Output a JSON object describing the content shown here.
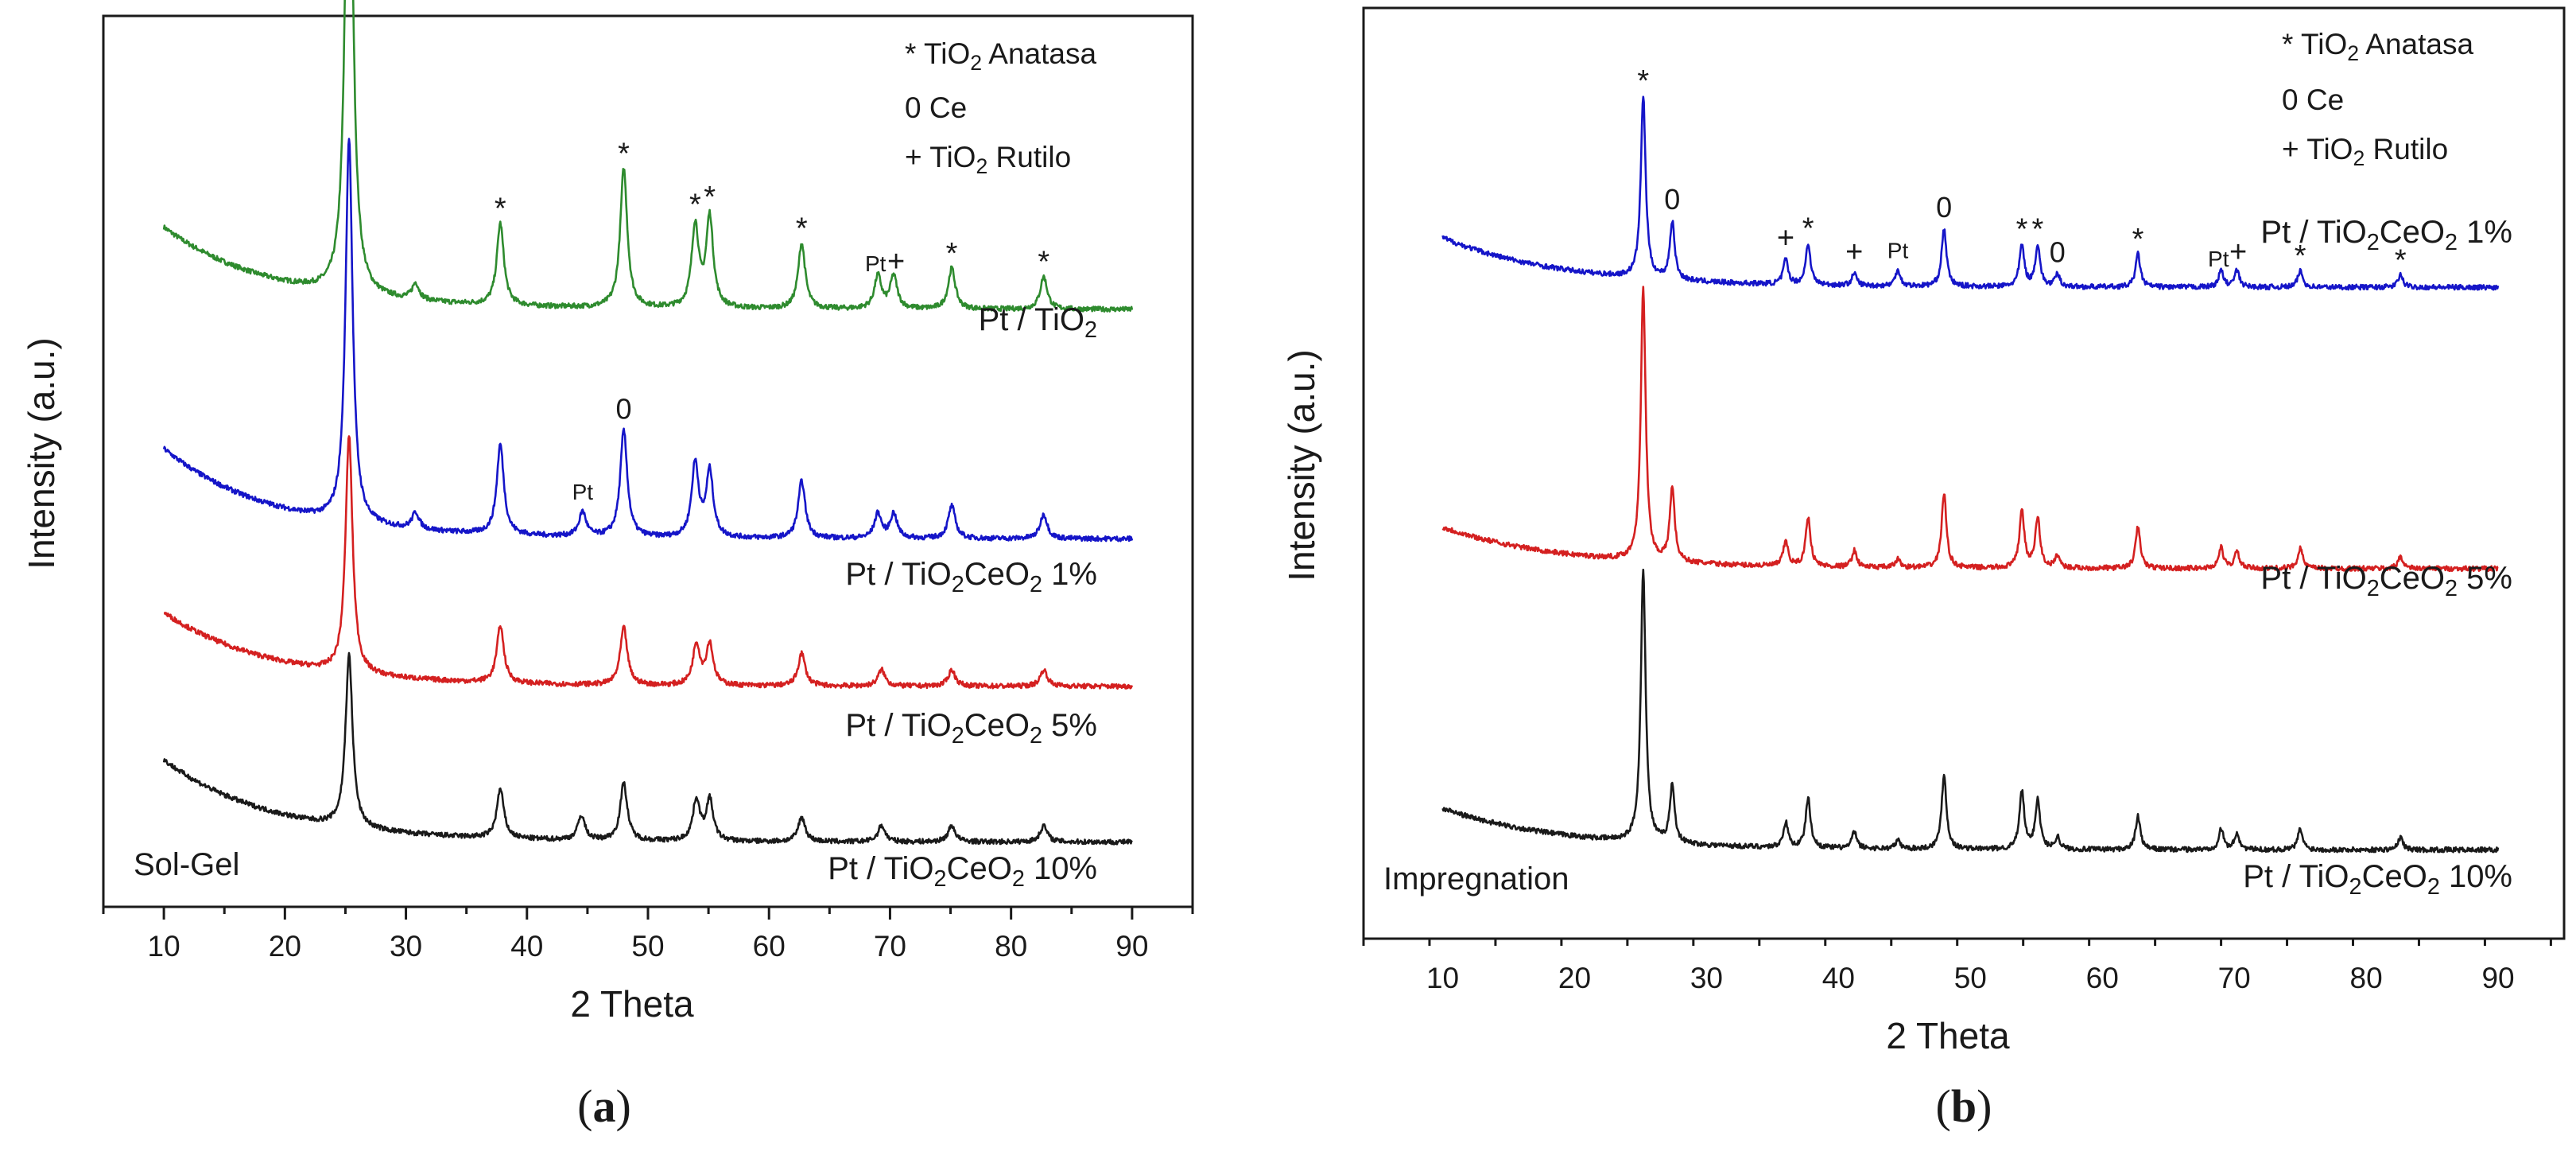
{
  "chart_data": [
    {
      "type": "line",
      "panel_label": "a",
      "xlabel": "2 Theta",
      "ylabel": "Intensity (a.u.)",
      "xlim": [
        5,
        95
      ],
      "xticks": [
        10,
        20,
        30,
        40,
        50,
        60,
        70,
        80,
        90
      ],
      "method_label": "Sol-Gel",
      "legend": [
        "* TiO2 Anatasa",
        "0 Ce",
        "+ TiO2 Rutilo"
      ],
      "series": [
        {
          "name": "Pt / TiO2",
          "color": "#2e8b2e",
          "baseline": 0.7,
          "background": 0.1,
          "peaks": [
            [
              25.3,
              0.72
            ],
            [
              30.8,
              0.02
            ],
            [
              37.8,
              0.1
            ],
            [
              48.0,
              0.17
            ],
            [
              53.9,
              0.1
            ],
            [
              55.1,
              0.11
            ],
            [
              62.7,
              0.08
            ],
            [
              69.0,
              0.04
            ],
            [
              70.3,
              0.04
            ],
            [
              75.1,
              0.05
            ],
            [
              82.7,
              0.04
            ]
          ]
        },
        {
          "name": "Pt / TiO2CeO2 1%",
          "color": "#1515c8",
          "baseline": 0.42,
          "background": 0.11,
          "peaks": [
            [
              25.3,
              0.47
            ],
            [
              30.8,
              0.02
            ],
            [
              37.8,
              0.11
            ],
            [
              44.6,
              0.03
            ],
            [
              48.0,
              0.13
            ],
            [
              53.9,
              0.09
            ],
            [
              55.1,
              0.08
            ],
            [
              62.7,
              0.07
            ],
            [
              69.0,
              0.03
            ],
            [
              70.3,
              0.03
            ],
            [
              75.1,
              0.04
            ],
            [
              82.7,
              0.03
            ]
          ]
        },
        {
          "name": "Pt / TiO2CeO2 5%",
          "color": "#d42020",
          "baseline": 0.24,
          "background": 0.09,
          "peaks": [
            [
              25.3,
              0.29
            ],
            [
              37.8,
              0.07
            ],
            [
              48.0,
              0.07
            ],
            [
              54.0,
              0.05
            ],
            [
              55.1,
              0.05
            ],
            [
              62.7,
              0.04
            ],
            [
              69.3,
              0.02
            ],
            [
              75.1,
              0.02
            ],
            [
              82.7,
              0.02
            ]
          ]
        },
        {
          "name": "Pt / TiO2CeO2 10%",
          "color": "#1a1a1a",
          "baseline": 0.05,
          "background": 0.1,
          "peaks": [
            [
              25.3,
              0.21
            ],
            [
              37.8,
              0.06
            ],
            [
              44.5,
              0.03
            ],
            [
              48.0,
              0.07
            ],
            [
              54.0,
              0.05
            ],
            [
              55.1,
              0.05
            ],
            [
              62.7,
              0.03
            ],
            [
              69.3,
              0.02
            ],
            [
              75.1,
              0.02
            ],
            [
              82.7,
              0.02
            ]
          ]
        }
      ],
      "annotations": [
        {
          "text": "*",
          "x": 25.3,
          "series": 0
        },
        {
          "text": "*",
          "x": 37.8,
          "series": 0
        },
        {
          "text": "*",
          "x": 48.0,
          "series": 0
        },
        {
          "text": "*",
          "x": 53.9,
          "series": 0
        },
        {
          "text": "*",
          "x": 55.1,
          "series": 0
        },
        {
          "text": "*",
          "x": 62.7,
          "series": 0
        },
        {
          "text": "Pt",
          "x": 68.8,
          "series": 0
        },
        {
          "text": "+",
          "x": 70.5,
          "series": 0
        },
        {
          "text": "*",
          "x": 75.1,
          "series": 0
        },
        {
          "text": "*",
          "x": 82.7,
          "series": 0
        },
        {
          "text": "Pt",
          "x": 44.6,
          "series": 1
        },
        {
          "text": "0",
          "x": 48.0,
          "series": 1
        }
      ]
    },
    {
      "type": "line",
      "panel_label": "b",
      "xlabel": "2 Theta",
      "ylabel": "Intensity (a.u.)",
      "xlim": [
        4,
        95
      ],
      "xticks": [
        10,
        20,
        30,
        40,
        50,
        60,
        70,
        80,
        90
      ],
      "method_label": "Impregnation",
      "legend": [
        "* TiO2 Anatasa",
        "0 Ce",
        "+ TiO2 Rutilo"
      ],
      "series": [
        {
          "name": "Pt / TiO2CeO2 1%",
          "color": "#1515c8",
          "baseline": 0.72,
          "background": 0.06,
          "peaks": [
            [
              25.2,
              0.22
            ],
            [
              27.4,
              0.07
            ],
            [
              36.0,
              0.03
            ],
            [
              37.7,
              0.05
            ],
            [
              41.2,
              0.015
            ],
            [
              44.5,
              0.02
            ],
            [
              48.0,
              0.07
            ],
            [
              53.9,
              0.05
            ],
            [
              55.1,
              0.05
            ],
            [
              56.6,
              0.015
            ],
            [
              62.7,
              0.04
            ],
            [
              69.0,
              0.02
            ],
            [
              70.2,
              0.02
            ],
            [
              75.0,
              0.02
            ],
            [
              82.6,
              0.015
            ]
          ]
        },
        {
          "name": "Pt / TiO2CeO2 5%",
          "color": "#d42020",
          "baseline": 0.38,
          "background": 0.05,
          "peaks": [
            [
              25.2,
              0.33
            ],
            [
              27.4,
              0.09
            ],
            [
              36.0,
              0.03
            ],
            [
              37.7,
              0.06
            ],
            [
              41.2,
              0.02
            ],
            [
              44.5,
              0.01
            ],
            [
              48.0,
              0.09
            ],
            [
              53.9,
              0.07
            ],
            [
              55.1,
              0.06
            ],
            [
              56.6,
              0.015
            ],
            [
              62.7,
              0.05
            ],
            [
              69.0,
              0.025
            ],
            [
              70.2,
              0.02
            ],
            [
              75.0,
              0.025
            ],
            [
              82.6,
              0.015
            ]
          ]
        },
        {
          "name": "Pt / TiO2CeO2 10%",
          "color": "#1a1a1a",
          "baseline": 0.04,
          "background": 0.05,
          "peaks": [
            [
              25.2,
              0.33
            ],
            [
              27.4,
              0.07
            ],
            [
              36.0,
              0.03
            ],
            [
              37.7,
              0.06
            ],
            [
              41.2,
              0.02
            ],
            [
              44.5,
              0.01
            ],
            [
              48.0,
              0.09
            ],
            [
              53.9,
              0.07
            ],
            [
              55.1,
              0.06
            ],
            [
              56.6,
              0.015
            ],
            [
              62.7,
              0.04
            ],
            [
              69.0,
              0.025
            ],
            [
              70.2,
              0.02
            ],
            [
              75.0,
              0.025
            ],
            [
              82.6,
              0.015
            ]
          ]
        }
      ],
      "annotations": [
        {
          "text": "*",
          "x": 25.2,
          "series": 0
        },
        {
          "text": "0",
          "x": 27.4,
          "series": 0
        },
        {
          "text": "+",
          "x": 36.0,
          "series": 0
        },
        {
          "text": "*",
          "x": 37.7,
          "series": 0
        },
        {
          "text": "+",
          "x": 41.2,
          "series": 0
        },
        {
          "text": "Pt",
          "x": 44.5,
          "series": 0
        },
        {
          "text": "0",
          "x": 48.0,
          "series": 0
        },
        {
          "text": "*",
          "x": 53.9,
          "series": 0
        },
        {
          "text": "*",
          "x": 55.1,
          "series": 0
        },
        {
          "text": "0",
          "x": 56.6,
          "series": 0
        },
        {
          "text": "*",
          "x": 62.7,
          "series": 0
        },
        {
          "text": "Pt",
          "x": 68.8,
          "series": 0
        },
        {
          "text": "+",
          "x": 70.3,
          "series": 0
        },
        {
          "text": "*",
          "x": 75.0,
          "series": 0
        },
        {
          "text": "*",
          "x": 82.6,
          "series": 0
        }
      ]
    }
  ]
}
